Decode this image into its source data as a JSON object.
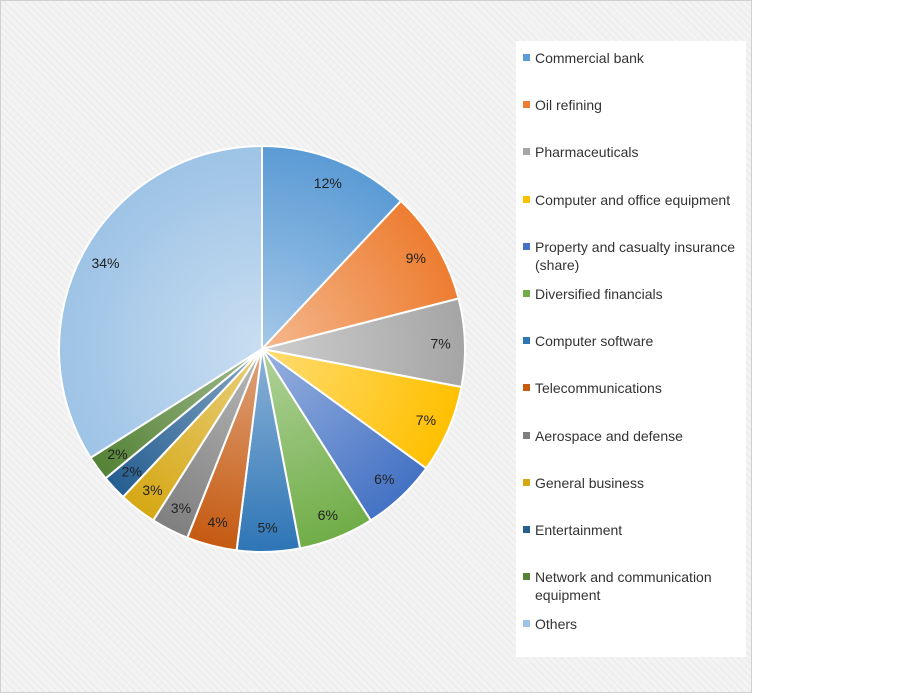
{
  "chart_data": {
    "type": "pie",
    "title": "",
    "series": [
      {
        "label": "Commercial bank",
        "value": 12,
        "value_label": "12%",
        "color": "#5b9bd5"
      },
      {
        "label": "Oil refining",
        "value": 9,
        "value_label": "9%",
        "color": "#ed7d31"
      },
      {
        "label": "Pharmaceuticals",
        "value": 7,
        "value_label": "7%",
        "color": "#a5a5a5"
      },
      {
        "label": "Computer and office equipment",
        "value": 7,
        "value_label": "7%",
        "color": "#ffc000"
      },
      {
        "label": "Property and casualty insurance (share)",
        "value": 6,
        "value_label": "6%",
        "color": "#4472c4"
      },
      {
        "label": "Diversified financials",
        "value": 6,
        "value_label": "6%",
        "color": "#70ad47"
      },
      {
        "label": "Computer software",
        "value": 5,
        "value_label": "5%",
        "color": "#2e75b6"
      },
      {
        "label": "Telecommunications",
        "value": 4,
        "value_label": "4%",
        "color": "#c55a11"
      },
      {
        "label": "Aerospace and defense",
        "value": 3,
        "value_label": "3%",
        "color": "#7f7f7f"
      },
      {
        "label": "General business",
        "value": 3,
        "value_label": "3%",
        "color": "#d6a815"
      },
      {
        "label": "Entertainment",
        "value": 2,
        "value_label": "2%",
        "color": "#255e91"
      },
      {
        "label": "Network and communication equipment",
        "value": 2,
        "value_label": "2%",
        "color": "#548235"
      },
      {
        "label": "Others",
        "value": 34,
        "value_label": "34%",
        "color": "#9dc3e6"
      }
    ],
    "legend_position": "right",
    "start_angle": "12 o'clock",
    "direction": "clockwise"
  }
}
